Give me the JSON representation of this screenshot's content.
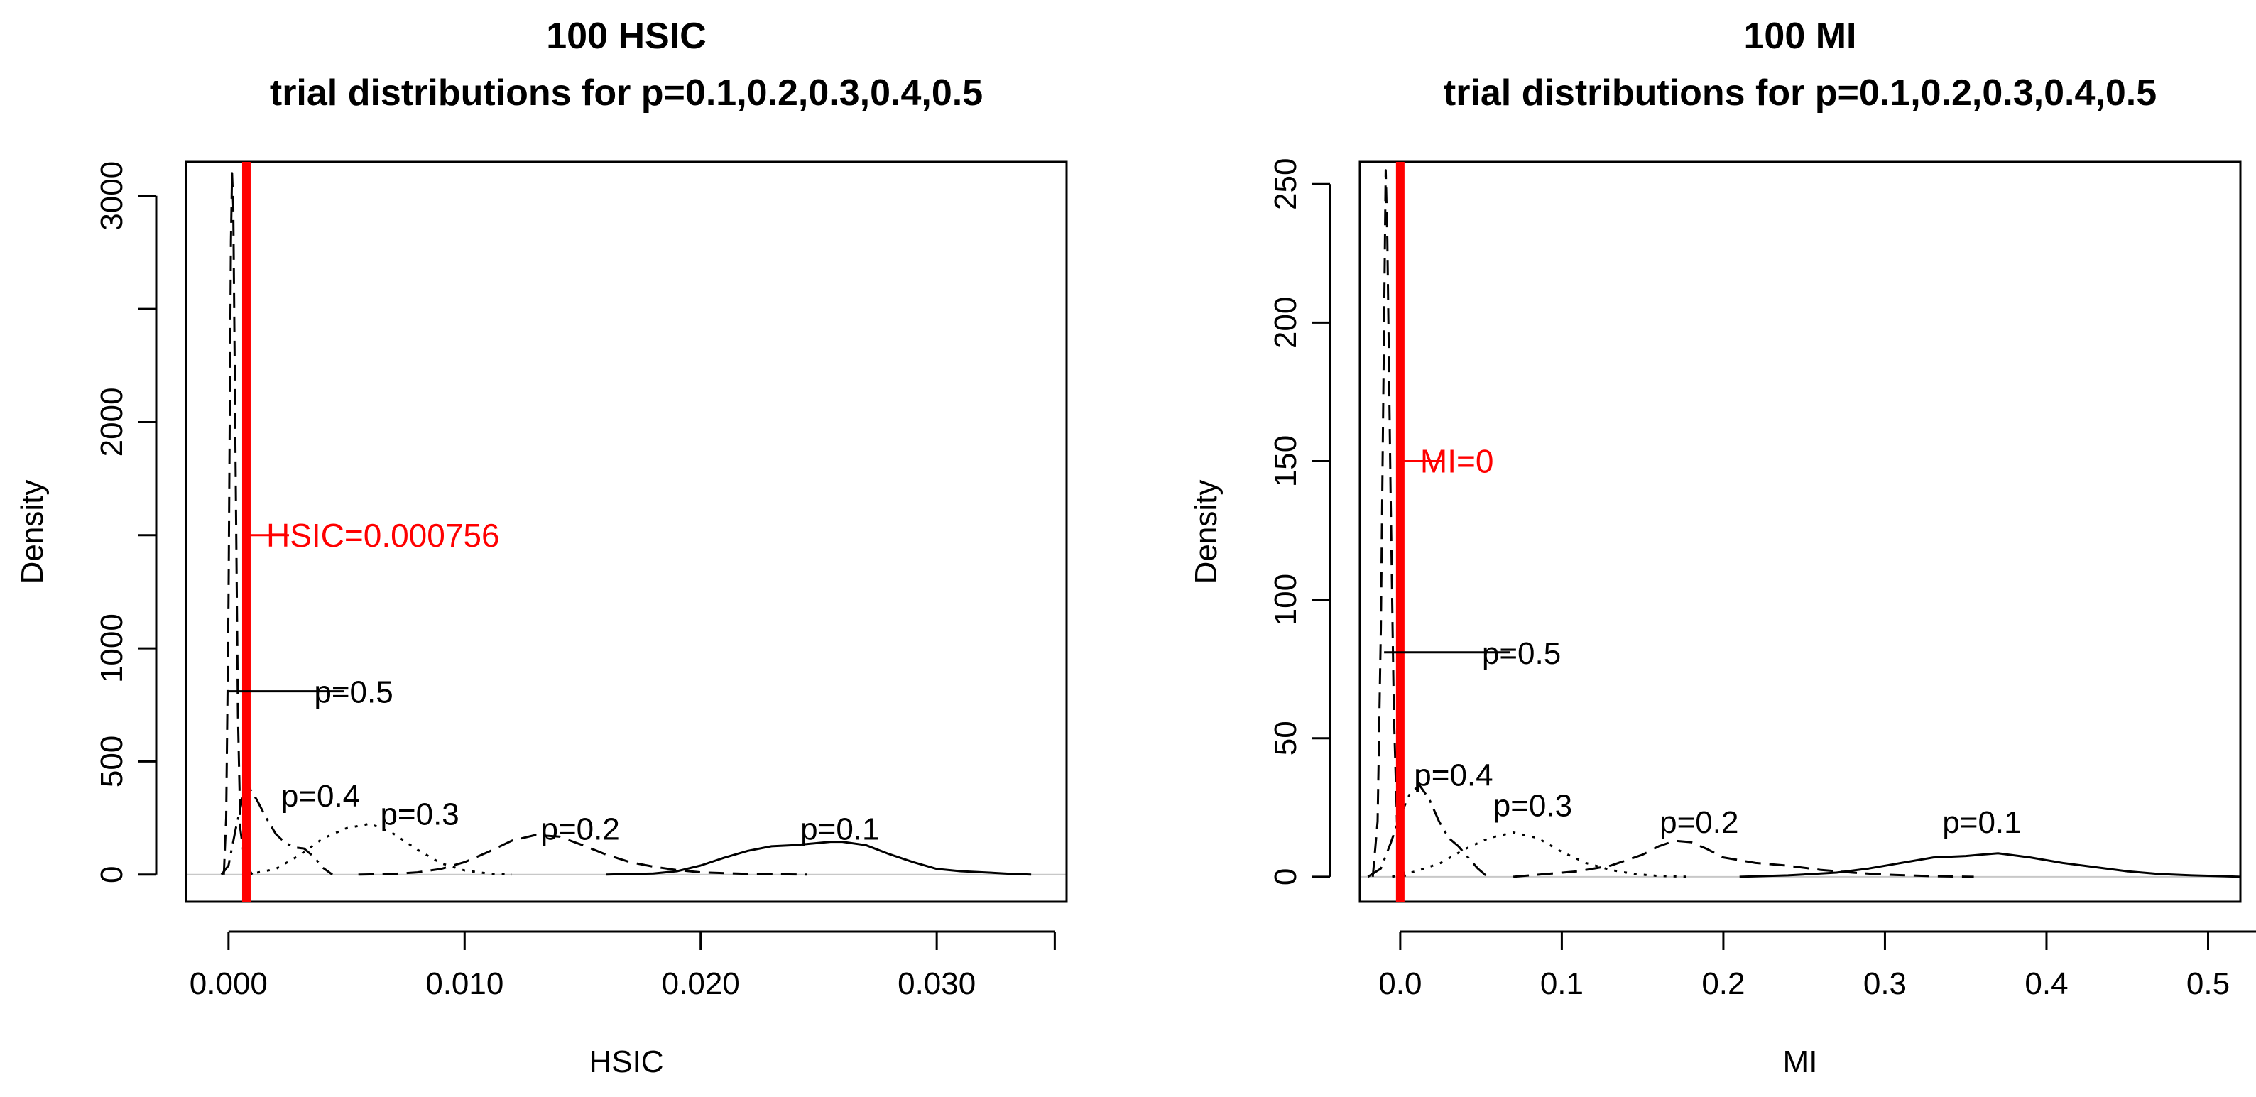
{
  "chart_data": [
    {
      "type": "line",
      "title": "100 HSIC",
      "subtitle": "trial distributions for p=0.1,0.2,0.3,0.4,0.5",
      "xlabel": "HSIC",
      "ylabel": "Density",
      "xlim": [
        -0.0018,
        0.0355
      ],
      "ylim": [
        -120,
        3150
      ],
      "xticks": [
        0.0,
        0.01,
        0.02,
        0.03
      ],
      "xtick_labels": [
        "0.000",
        "0.010",
        "0.020",
        "0.030"
      ],
      "yticks": [
        0,
        500,
        1000,
        2000,
        3000
      ],
      "ytick_labels": [
        "0",
        "500",
        "1000",
        "2000",
        "3000"
      ],
      "grid": false,
      "legend": "none",
      "zero_line": true,
      "series": [
        {
          "name": "p=0.5",
          "style": "dashed",
          "x": [
            -0.0002,
            -0.0001,
            0.0,
            0.0001,
            0.00015,
            0.0002,
            0.0003,
            0.0004,
            0.0005,
            0.0007,
            0.001
          ],
          "y": [
            0,
            250,
            1200,
            2800,
            3100,
            2950,
            1800,
            700,
            200,
            50,
            0
          ]
        },
        {
          "name": "p=0.4",
          "style": "dashdot",
          "x": [
            -0.0003,
            0.0,
            0.0003,
            0.0006,
            0.0009,
            0.0012,
            0.0016,
            0.002,
            0.0024,
            0.0028,
            0.0032,
            0.0036,
            0.004,
            0.0044
          ],
          "y": [
            0,
            40,
            200,
            340,
            380,
            330,
            250,
            180,
            140,
            120,
            115,
            80,
            30,
            0
          ]
        },
        {
          "name": "p=0.3",
          "style": "dotted",
          "x": [
            0.0008,
            0.002,
            0.003,
            0.004,
            0.005,
            0.006,
            0.007,
            0.008,
            0.009,
            0.01,
            0.011,
            0.012
          ],
          "y": [
            0,
            25,
            85,
            160,
            205,
            225,
            180,
            110,
            50,
            18,
            5,
            0
          ]
        },
        {
          "name": "p=0.2",
          "style": "dashed",
          "x": [
            0.0055,
            0.007,
            0.008,
            0.009,
            0.01,
            0.011,
            0.012,
            0.013,
            0.014,
            0.015,
            0.016,
            0.017,
            0.018,
            0.019,
            0.02,
            0.022,
            0.0245
          ],
          "y": [
            0,
            3,
            10,
            25,
            55,
            100,
            150,
            175,
            168,
            130,
            88,
            55,
            35,
            20,
            10,
            3,
            0
          ]
        },
        {
          "name": "p=0.1",
          "style": "solid",
          "x": [
            0.016,
            0.018,
            0.019,
            0.02,
            0.021,
            0.022,
            0.023,
            0.024,
            0.0255,
            0.026,
            0.027,
            0.028,
            0.029,
            0.03,
            0.031,
            0.032,
            0.033,
            0.034
          ],
          "y": [
            0,
            5,
            15,
            40,
            75,
            105,
            125,
            130,
            145,
            145,
            130,
            90,
            55,
            25,
            15,
            10,
            4,
            0
          ]
        }
      ],
      "reference_line": {
        "x": 0.000756,
        "color": "#ff0000",
        "label": "HSIC=0.000756",
        "label_y": 1500
      },
      "annotations": [
        {
          "text": "p=0.5",
          "x": 0.0053,
          "y": 810,
          "pointer_from_x": 0.0,
          "pointer_to_x": 0.0049,
          "color": "#000000"
        },
        {
          "text": "p=0.4",
          "x": 0.0039,
          "y": 350,
          "color": "#000000"
        },
        {
          "text": "p=0.3",
          "x": 0.0081,
          "y": 270,
          "color": "#000000"
        },
        {
          "text": "p=0.2",
          "x": 0.0149,
          "y": 205,
          "color": "#000000"
        },
        {
          "text": "p=0.1",
          "x": 0.0259,
          "y": 205,
          "color": "#000000"
        }
      ]
    },
    {
      "type": "line",
      "title": "100 MI",
      "subtitle": "trial distributions for p=0.1,0.2,0.3,0.4,0.5",
      "xlabel": "MI",
      "ylabel": "Density",
      "xlim": [
        -0.025,
        0.52
      ],
      "ylim": [
        -9,
        258
      ],
      "xticks": [
        0.0,
        0.1,
        0.2,
        0.3,
        0.4,
        0.5
      ],
      "xtick_labels": [
        "0.0",
        "0.1",
        "0.2",
        "0.3",
        "0.4",
        "0.5"
      ],
      "yticks": [
        0,
        50,
        100,
        150,
        200,
        250
      ],
      "ytick_labels": [
        "0",
        "50",
        "100",
        "150",
        "200",
        "250"
      ],
      "grid": false,
      "legend": "none",
      "zero_line": true,
      "series": [
        {
          "name": "p=0.5",
          "style": "dashed",
          "x": [
            -0.017,
            -0.014,
            -0.012,
            -0.01,
            -0.009,
            -0.008,
            -0.006,
            -0.004,
            -0.002,
            0.0,
            0.003
          ],
          "y": [
            0,
            20,
            90,
            200,
            255,
            230,
            140,
            60,
            20,
            5,
            0
          ]
        },
        {
          "name": "p=0.4",
          "style": "dashdot",
          "x": [
            -0.02,
            -0.012,
            -0.006,
            0.0,
            0.006,
            0.012,
            0.018,
            0.024,
            0.03,
            0.036,
            0.042,
            0.048,
            0.054
          ],
          "y": [
            0,
            3,
            12,
            22,
            30,
            33,
            28,
            20,
            14,
            11,
            7,
            3,
            0
          ]
        },
        {
          "name": "p=0.3",
          "style": "dotted",
          "x": [
            -0.005,
            0.01,
            0.025,
            0.04,
            0.055,
            0.07,
            0.085,
            0.1,
            0.115,
            0.13,
            0.145,
            0.16,
            0.18
          ],
          "y": [
            0,
            2,
            5,
            10,
            14,
            16,
            14,
            9,
            5,
            2.5,
            1,
            0.3,
            0
          ]
        },
        {
          "name": "p=0.2",
          "style": "dashed",
          "x": [
            0.07,
            0.09,
            0.11,
            0.13,
            0.15,
            0.16,
            0.17,
            0.18,
            0.19,
            0.2,
            0.22,
            0.24,
            0.26,
            0.28,
            0.3,
            0.33,
            0.355
          ],
          "y": [
            0,
            1,
            2,
            4,
            8,
            11,
            13,
            12.5,
            10,
            7,
            5,
            4,
            2.5,
            1.5,
            0.8,
            0.2,
            0
          ]
        },
        {
          "name": "p=0.1",
          "style": "solid",
          "x": [
            0.21,
            0.24,
            0.27,
            0.29,
            0.31,
            0.33,
            0.35,
            0.37,
            0.39,
            0.41,
            0.43,
            0.45,
            0.47,
            0.49,
            0.51,
            0.52
          ],
          "y": [
            0,
            0.5,
            1.5,
            3,
            5,
            7,
            7.5,
            8.5,
            7,
            5,
            3.5,
            2,
            1,
            0.5,
            0.2,
            0
          ]
        }
      ],
      "reference_line": {
        "x": 0.0,
        "color": "#ff0000",
        "label": "MI=0",
        "label_y": 150
      },
      "annotations": [
        {
          "text": "p=0.5",
          "x": 0.075,
          "y": 81,
          "pointer_from_x": -0.01,
          "pointer_to_x": 0.068,
          "color": "#000000"
        },
        {
          "text": "p=0.4",
          "x": 0.033,
          "y": 37,
          "color": "#000000"
        },
        {
          "text": "p=0.3",
          "x": 0.082,
          "y": 26,
          "color": "#000000"
        },
        {
          "text": "p=0.2",
          "x": 0.185,
          "y": 20,
          "color": "#000000"
        },
        {
          "text": "p=0.1",
          "x": 0.36,
          "y": 20,
          "color": "#000000"
        }
      ]
    }
  ]
}
